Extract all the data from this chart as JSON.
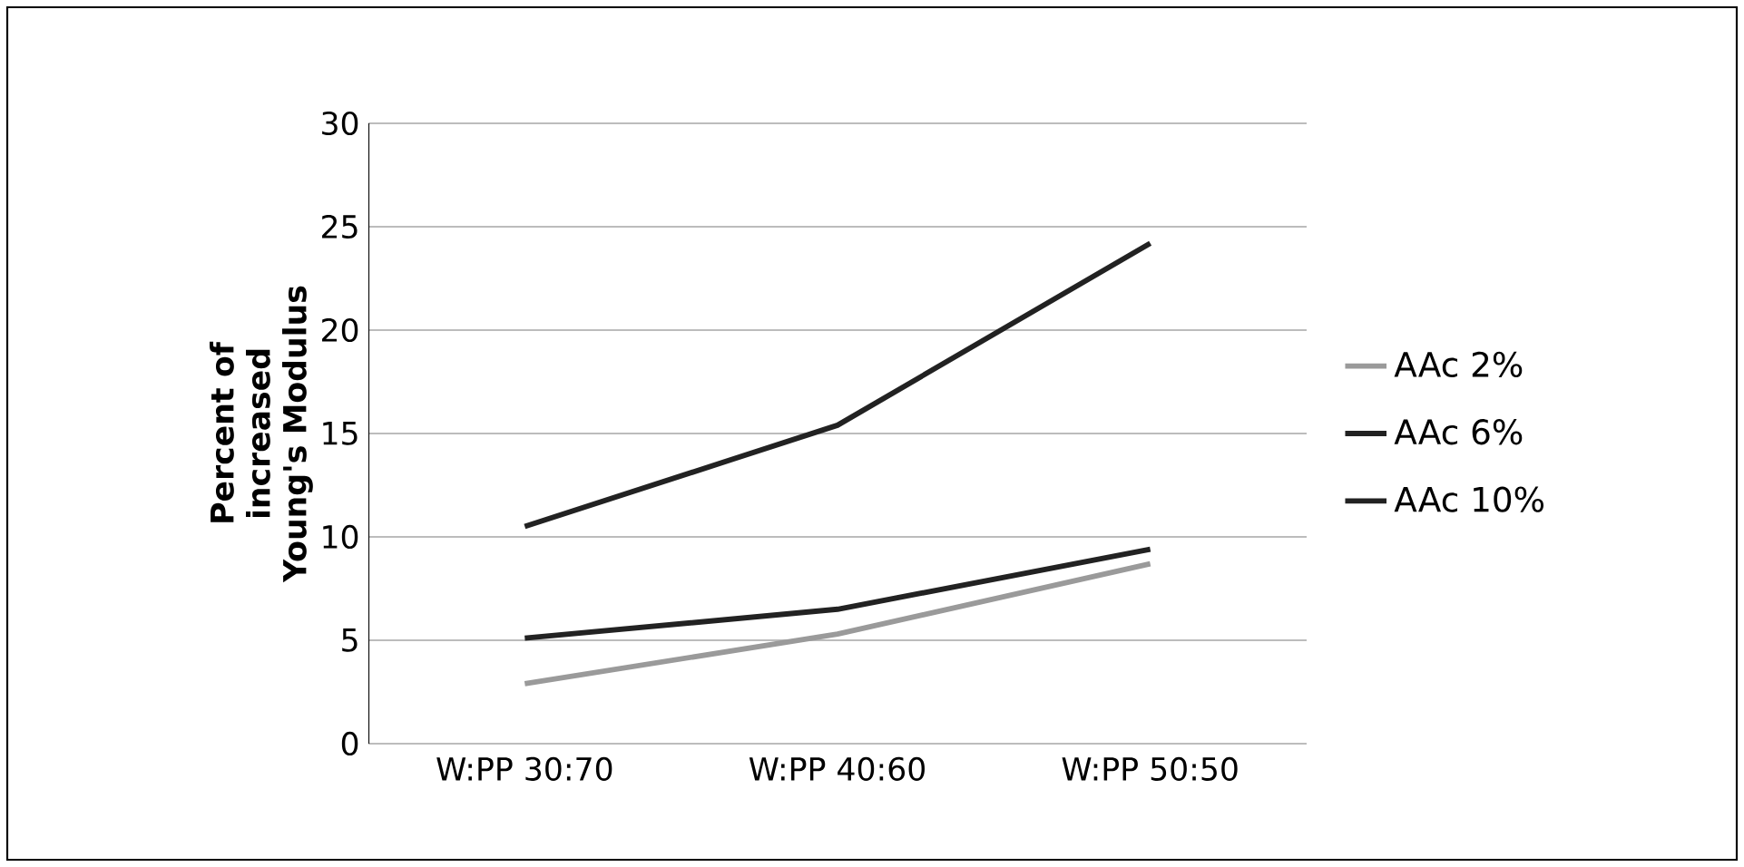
{
  "chart_data": {
    "type": "line",
    "ylabel": "Percent of increased Young's Modulus",
    "categories": [
      "W:PP 30:70",
      "W:PP 40:60",
      "W:PP 50:50"
    ],
    "series": [
      {
        "name": "AAc 2%",
        "color": "#9a9a9a",
        "values": [
          2.9,
          5.3,
          8.7
        ]
      },
      {
        "name": "AAc 6%",
        "color": "#222222",
        "values": [
          5.1,
          6.5,
          9.4
        ]
      },
      {
        "name": "AAc 10%",
        "color": "#222222",
        "values": [
          10.5,
          15.4,
          24.2
        ]
      }
    ],
    "ylim": [
      0,
      30
    ],
    "yticks": [
      0,
      5,
      10,
      15,
      20,
      25,
      30
    ],
    "grid": "y",
    "legend": "right",
    "marker": "none",
    "line_style": "solid"
  }
}
